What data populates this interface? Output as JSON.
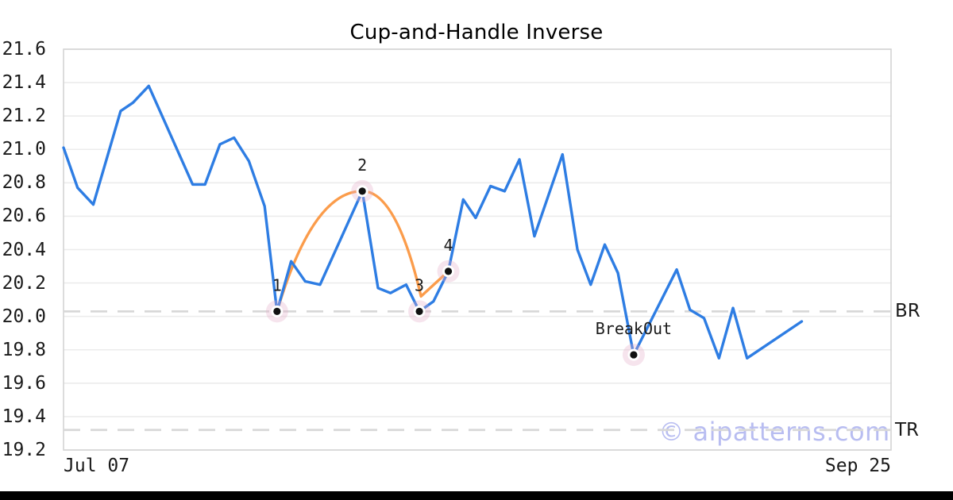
{
  "title": "Cup-and-Handle Inverse",
  "watermark": "© aipatterns.com",
  "colors": {
    "price_line": "#2e7de3",
    "pattern_line": "#fb9c4b",
    "marker_halo": "#e3aec9",
    "marker_ring": "#ffffff",
    "marker_dot": "#111111",
    "level_line": "#d8d8d8",
    "gridline": "#ececec",
    "plot_border": "#d4d4d4",
    "label_text": "#1a1a1a",
    "watermark_color": "#b8bdf1"
  },
  "chart_data": {
    "type": "line",
    "title": "Cup-and-Handle Inverse",
    "ylim": [
      19.2,
      21.6
    ],
    "yticks": [
      21.6,
      21.4,
      21.2,
      21.0,
      20.8,
      20.6,
      20.4,
      20.2,
      20.0,
      19.8,
      19.6,
      19.4,
      19.2
    ],
    "xtick_labels": [
      "Jul 07",
      "Sep 25"
    ],
    "grid": true,
    "legend": false,
    "series": [
      {
        "name": "price",
        "points": [
          [
            0.0,
            21.01
          ],
          [
            0.017,
            20.77
          ],
          [
            0.036,
            20.67
          ],
          [
            0.069,
            21.23
          ],
          [
            0.084,
            21.28
          ],
          [
            0.103,
            21.38
          ],
          [
            0.156,
            20.79
          ],
          [
            0.171,
            20.79
          ],
          [
            0.189,
            21.03
          ],
          [
            0.206,
            21.07
          ],
          [
            0.224,
            20.93
          ],
          [
            0.243,
            20.66
          ],
          [
            0.258,
            20.03
          ],
          [
            0.275,
            20.33
          ],
          [
            0.292,
            20.21
          ],
          [
            0.31,
            20.19
          ],
          [
            0.361,
            20.75
          ],
          [
            0.38,
            20.17
          ],
          [
            0.395,
            20.14
          ],
          [
            0.414,
            20.19
          ],
          [
            0.43,
            20.03
          ],
          [
            0.447,
            20.09
          ],
          [
            0.465,
            20.27
          ],
          [
            0.483,
            20.7
          ],
          [
            0.498,
            20.59
          ],
          [
            0.516,
            20.78
          ],
          [
            0.533,
            20.75
          ],
          [
            0.551,
            20.94
          ],
          [
            0.569,
            20.48
          ],
          [
            0.603,
            20.97
          ],
          [
            0.621,
            20.4
          ],
          [
            0.637,
            20.19
          ],
          [
            0.654,
            20.43
          ],
          [
            0.67,
            20.26
          ],
          [
            0.689,
            19.77
          ],
          [
            0.741,
            20.28
          ],
          [
            0.757,
            20.04
          ],
          [
            0.774,
            19.99
          ],
          [
            0.792,
            19.75
          ],
          [
            0.809,
            20.05
          ],
          [
            0.826,
            19.75
          ],
          [
            0.892,
            19.97
          ]
        ]
      }
    ],
    "pattern_overlay": {
      "name": "inverse-cup-arc-and-handle",
      "cup": [
        [
          0.258,
          20.03
        ],
        [
          0.361,
          20.75
        ],
        [
          0.432,
          20.12
        ]
      ],
      "handle": [
        [
          0.432,
          20.12
        ],
        [
          0.465,
          20.27
        ]
      ]
    },
    "markers": [
      {
        "label": "1",
        "x": 0.258,
        "value": 20.03
      },
      {
        "label": "2",
        "x": 0.361,
        "value": 20.75
      },
      {
        "label": "3",
        "x": 0.43,
        "value": 20.03
      },
      {
        "label": "4",
        "x": 0.465,
        "value": 20.27
      },
      {
        "label": "BreakOut",
        "x": 0.689,
        "value": 19.77
      }
    ],
    "levels": [
      {
        "label": "BR",
        "value": 20.03
      },
      {
        "label": "TR",
        "value": 19.32
      }
    ]
  }
}
